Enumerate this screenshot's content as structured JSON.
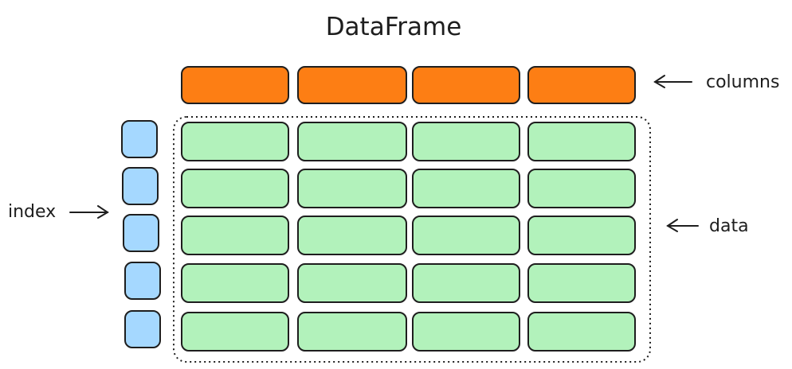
{
  "title": "DataFrame",
  "labels": {
    "columns": "columns",
    "index": "index",
    "data": "data"
  },
  "grid": {
    "column_count": 4,
    "row_count": 5
  },
  "colors": {
    "column_fill": "#fd7e14",
    "index_fill": "#a5d8ff",
    "data_fill": "#b2f2bb",
    "stroke": "#1e1e1e"
  }
}
